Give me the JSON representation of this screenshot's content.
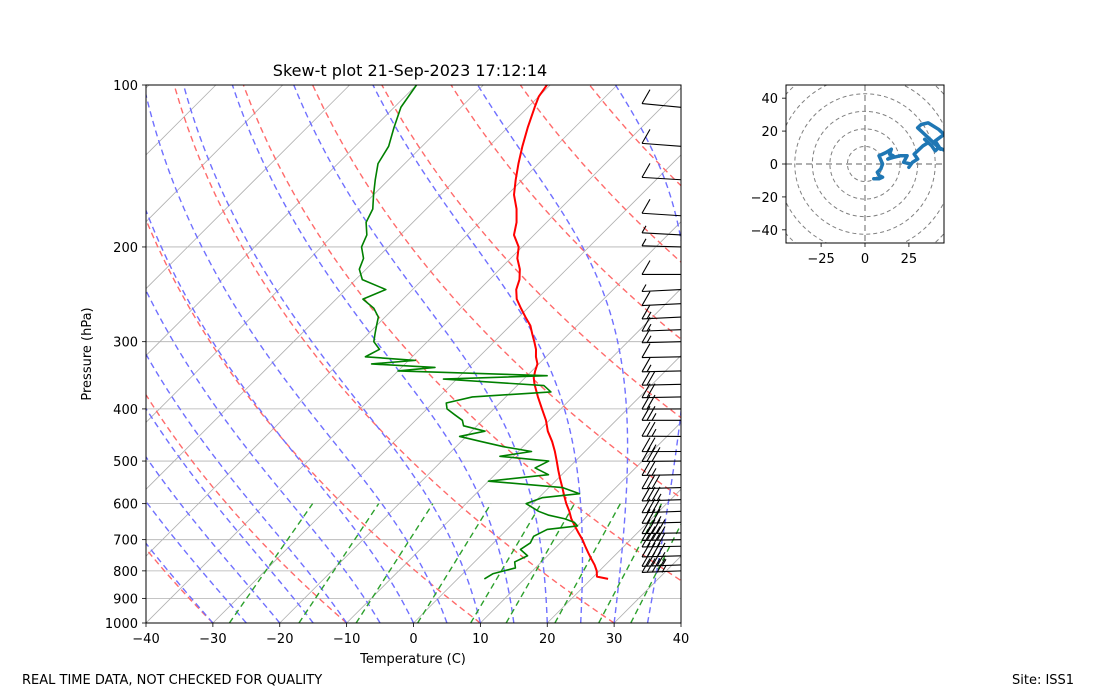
{
  "footer": {
    "quality_note": "REAL TIME DATA, NOT CHECKED FOR QUALITY",
    "site": "Site: ISS1"
  },
  "colors": {
    "temperature": "#ff0000",
    "dewpoint": "#008000",
    "dry_adiabat": "#ff6b6b",
    "moist_adiabat": "#7070ff",
    "mixing_ratio": "#2ca02c",
    "hodograph": "#1f77b4",
    "grid": "#b0b0b0",
    "rings": "#808080"
  },
  "chart_data": [
    {
      "type": "line",
      "subtype": "skew-t",
      "title": "Skew-t plot 21-Sep-2023 17:12:14",
      "xlabel": "Temperature (C)",
      "ylabel": "Pressure (hPa)",
      "xlim": [
        -40,
        40
      ],
      "ylim": [
        1000,
        100
      ],
      "yscale": "log",
      "xticks": [
        -40,
        -30,
        -20,
        -10,
        0,
        10,
        20,
        30,
        40
      ],
      "xtick_labels": [
        "−40",
        "−30",
        "−20",
        "−10",
        "0",
        "10",
        "20",
        "30",
        "40"
      ],
      "yticks": [
        1000,
        900,
        800,
        700,
        600,
        500,
        400,
        300,
        200,
        100
      ],
      "ytick_labels": [
        "1000",
        "900",
        "800",
        "700",
        "600",
        "500",
        "400",
        "300",
        "200",
        "100"
      ],
      "series": [
        {
          "name": "Temperature",
          "pressure": [
            828,
            820,
            800,
            780,
            760,
            740,
            720,
            700,
            680,
            660,
            640,
            620,
            600,
            580,
            560,
            540,
            520,
            500,
            480,
            460,
            440,
            420,
            400,
            380,
            360,
            350,
            340,
            330,
            320,
            310,
            300,
            290,
            280,
            270,
            260,
            250,
            240,
            230,
            220,
            210,
            200,
            190,
            180,
            170,
            160,
            150,
            140,
            130,
            120,
            110,
            105,
            100
          ],
          "temperature": [
            22.5,
            20.5,
            19.6,
            18.4,
            17.0,
            15.6,
            14.2,
            12.8,
            11.2,
            9.6,
            8.0,
            6.6,
            5.0,
            3.5,
            2.0,
            0.4,
            -1.2,
            -2.8,
            -4.5,
            -6.4,
            -8.6,
            -10.5,
            -12.8,
            -15.2,
            -17.6,
            -18.7,
            -19.5,
            -20.2,
            -21.5,
            -22.6,
            -24.0,
            -25.5,
            -27.0,
            -29.0,
            -31.0,
            -33.0,
            -34.5,
            -35.5,
            -37.0,
            -39.0,
            -40.5,
            -43.0,
            -44.5,
            -46.5,
            -49.0,
            -51.0,
            -53.0,
            -55.0,
            -57.0,
            -59.0,
            -60.0,
            -60.5
          ]
        },
        {
          "name": "Dewpoint",
          "pressure": [
            828,
            810,
            790,
            770,
            750,
            730,
            710,
            690,
            670,
            660,
            650,
            640,
            630,
            620,
            600,
            585,
            575,
            560,
            545,
            530,
            515,
            500,
            490,
            480,
            470,
            460,
            450,
            440,
            430,
            420,
            410,
            400,
            390,
            380,
            372,
            362,
            352,
            347,
            340,
            335,
            330,
            325,
            320,
            310,
            300,
            290,
            280,
            270,
            260,
            250,
            240,
            230,
            220,
            210,
            200,
            190,
            180,
            170,
            160,
            150,
            140,
            130,
            120,
            110,
            100
          ],
          "temperature": [
            4.0,
            4.5,
            7.0,
            6.0,
            7.0,
            5.0,
            5.5,
            5.0,
            6.0,
            10.0,
            9.0,
            7.0,
            4.0,
            2.0,
            -1.0,
            0.5,
            5.5,
            2.0,
            -10.0,
            -2.0,
            -5.0,
            -4.0,
            -12.0,
            -8.0,
            -13.0,
            -17.0,
            -21.0,
            -18.0,
            -22.0,
            -23.0,
            -25.0,
            -27.0,
            -28.0,
            -25.0,
            -14.0,
            -16.0,
            -32.0,
            -17.0,
            -40.0,
            -35.0,
            -45.0,
            -39.0,
            -47.0,
            -46.0,
            -48.0,
            -49.0,
            -50.0,
            -51.0,
            -53.0,
            -56.0,
            -54.0,
            -59.0,
            -61.0,
            -62.0,
            -64.0,
            -65.0,
            -67.0,
            -68.0,
            -70.0,
            -72.0,
            -74.0,
            -75.0,
            -77.0,
            -79.0,
            -80.0
          ]
        }
      ],
      "wind_barbs_pressure": [
        110,
        130,
        150,
        175,
        190,
        200,
        225,
        240,
        255,
        270,
        285,
        300,
        320,
        340,
        360,
        380,
        400,
        420,
        450,
        480,
        500,
        530,
        560,
        590,
        620,
        650,
        680,
        700,
        720,
        750,
        780,
        800
      ]
    },
    {
      "type": "line",
      "subtype": "hodograph",
      "xlim": [
        -45,
        45
      ],
      "ylim": [
        -48,
        48
      ],
      "xticks": [
        -25,
        0,
        25
      ],
      "xtick_labels": [
        "−25",
        "0",
        "25"
      ],
      "yticks": [
        40,
        20,
        0,
        -20,
        -40
      ],
      "ytick_labels": [
        "40",
        "20",
        "0",
        "−20",
        "−40"
      ],
      "ring_spacing": 10,
      "series": [
        {
          "name": "Hodograph",
          "u": [
            5,
            8,
            10,
            8,
            7,
            9,
            10,
            8,
            12,
            15,
            14,
            16,
            13,
            16,
            20,
            24,
            22,
            26,
            25,
            27,
            30,
            28,
            33,
            36,
            34,
            38,
            40,
            42,
            43,
            40,
            45,
            42,
            36,
            32,
            30,
            34,
            38,
            42,
            46
          ],
          "v": [
            -9,
            -9,
            -8,
            -7,
            -5,
            -3,
            0,
            5,
            7,
            9,
            6,
            5,
            3,
            4,
            5,
            5,
            1,
            0,
            -2,
            1,
            3,
            6,
            11,
            13,
            15,
            11,
            8,
            10,
            9,
            14,
            18,
            21,
            25,
            24,
            22,
            18,
            14,
            10,
            8
          ]
        }
      ]
    }
  ]
}
